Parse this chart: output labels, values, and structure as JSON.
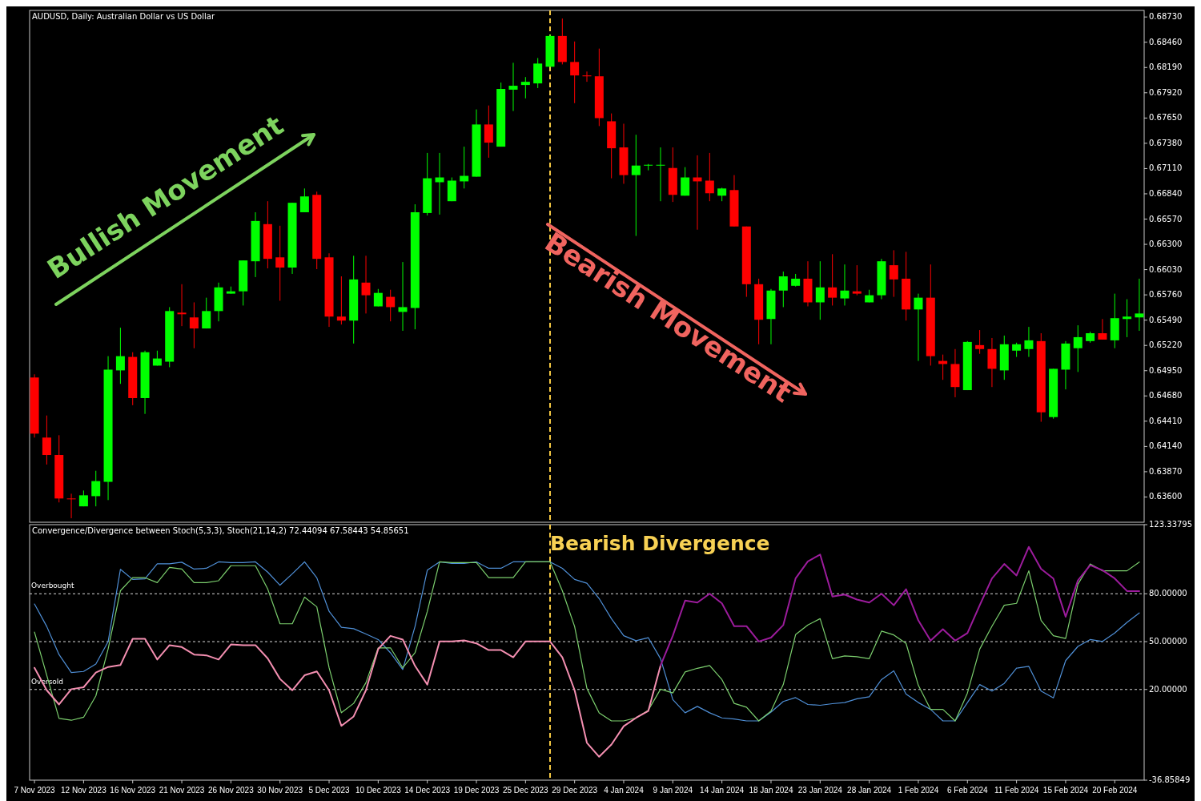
{
  "chart_data": [
    {
      "type": "candlestick",
      "title": "AUDUSD, Daily:  Australian Dollar vs US Dollar",
      "categories": [
        null,
        null,
        null,
        null,
        null,
        null,
        null,
        null,
        null,
        null,
        null,
        null,
        null,
        null,
        null,
        null,
        null,
        null,
        null,
        null,
        null,
        null,
        null,
        null,
        null,
        null,
        null,
        null,
        null,
        null,
        null,
        null,
        null,
        null,
        null,
        null,
        null,
        null,
        null,
        null,
        null,
        null,
        null,
        null,
        null,
        null,
        null,
        null,
        null,
        null,
        null,
        null,
        null,
        null,
        null,
        null,
        null,
        null,
        null,
        null,
        null,
        null,
        null,
        null,
        null,
        null,
        null,
        null,
        null,
        null,
        null,
        null,
        null,
        null,
        null,
        null,
        null,
        null,
        null,
        null,
        null,
        null,
        null,
        null,
        null,
        null,
        null,
        null,
        null,
        null,
        null
      ],
      "ohlc": [
        [
          0.64877,
          0.64911,
          0.64235,
          0.64277
        ],
        [
          0.64235,
          0.64471,
          0.63947,
          0.64049
        ],
        [
          0.64049,
          0.6426,
          0.63542,
          0.63584
        ],
        [
          0.63584,
          0.63635,
          0.63373,
          0.63576
        ],
        [
          0.635,
          0.63669,
          0.635,
          0.63618
        ],
        [
          0.63609,
          0.6388,
          0.635,
          0.6377
        ],
        [
          0.63762,
          0.65105,
          0.63567,
          0.64961
        ],
        [
          0.64953,
          0.65409,
          0.64809,
          0.65105
        ],
        [
          0.65097,
          0.65147,
          0.64581,
          0.64657
        ],
        [
          0.64657,
          0.65164,
          0.64488,
          0.65147
        ],
        [
          0.65004,
          0.65164,
          0.65004,
          0.6508
        ],
        [
          0.65046,
          0.65629,
          0.64987,
          0.65587
        ],
        [
          0.6557,
          0.65874,
          0.65426,
          0.65553
        ],
        [
          0.65519,
          0.6568,
          0.6519,
          0.65401
        ],
        [
          0.65401,
          0.6573,
          0.65401,
          0.65587
        ],
        [
          0.65587,
          0.65891,
          0.65477,
          0.6584
        ],
        [
          0.65773,
          0.65849,
          0.65773,
          0.65798
        ],
        [
          0.65798,
          0.66128,
          0.65646,
          0.66128
        ],
        [
          0.66119,
          0.66643,
          0.6595,
          0.6655
        ],
        [
          0.66516,
          0.66761,
          0.66043,
          0.66145
        ],
        [
          0.66161,
          0.66499,
          0.65697,
          0.66052
        ],
        [
          0.66052,
          0.66744,
          0.65984,
          0.66744
        ],
        [
          0.66643,
          0.66897,
          0.66643,
          0.66812
        ],
        [
          0.66829,
          0.66863,
          0.66035,
          0.66145
        ],
        [
          0.66161,
          0.66204,
          0.65418,
          0.65528
        ],
        [
          0.65528,
          0.65958,
          0.65443,
          0.65485
        ],
        [
          0.65485,
          0.66178,
          0.6524,
          0.65925
        ],
        [
          0.65891,
          0.66178,
          0.65561,
          0.65756
        ],
        [
          0.65637,
          0.65823,
          0.65637,
          0.65781
        ],
        [
          0.65739,
          0.65815,
          0.65477,
          0.65629
        ],
        [
          0.65578,
          0.66111,
          0.65376,
          0.65629
        ],
        [
          0.6562,
          0.66728,
          0.65392,
          0.66643
        ],
        [
          0.66635,
          0.67277,
          0.66609,
          0.67006
        ],
        [
          0.66964,
          0.67277,
          0.66618,
          0.67015
        ],
        [
          0.66761,
          0.67015,
          0.66761,
          0.66981
        ],
        [
          0.66973,
          0.67344,
          0.66897,
          0.67032
        ],
        [
          0.67023,
          0.67742,
          0.67023,
          0.67581
        ],
        [
          0.67581,
          0.67784,
          0.67226,
          0.67387
        ],
        [
          0.67344,
          0.68029,
          0.67344,
          0.67961
        ],
        [
          0.67953,
          0.6824,
          0.67725,
          0.67995
        ],
        [
          0.68003,
          0.68088,
          0.6786,
          0.68037
        ],
        [
          0.6802,
          0.68291,
          0.6797,
          0.68232
        ],
        [
          0.68198,
          0.68544,
          0.68198,
          0.68527
        ],
        [
          0.68527,
          0.68713,
          0.68223,
          0.68249
        ],
        [
          0.68249,
          0.68468,
          0.67809,
          0.68105
        ],
        [
          0.68105,
          0.68147,
          0.68037,
          0.68096
        ],
        [
          0.68096,
          0.68392,
          0.67564,
          0.67649
        ],
        [
          0.67615,
          0.67699,
          0.67006,
          0.67327
        ],
        [
          0.67336,
          0.67589,
          0.66947,
          0.6704
        ],
        [
          0.6704,
          0.67471,
          0.6639,
          0.67142
        ],
        [
          0.67142,
          0.67159,
          0.67091,
          0.6715
        ],
        [
          0.67142,
          0.67336,
          0.66761,
          0.6715
        ],
        [
          0.67116,
          0.67336,
          0.66753,
          0.66829
        ],
        [
          0.6682,
          0.67125,
          0.6682,
          0.67015
        ],
        [
          0.67015,
          0.67251,
          0.66457,
          0.66973
        ],
        [
          0.66981,
          0.67277,
          0.66761,
          0.66846
        ],
        [
          0.6682,
          0.66905,
          0.66761,
          0.66897
        ],
        [
          0.6688,
          0.6704,
          0.66491,
          0.66491
        ],
        [
          0.66491,
          0.66491,
          0.65739,
          0.65874
        ],
        [
          0.65874,
          0.65933,
          0.65232,
          0.65494
        ],
        [
          0.65502,
          0.65823,
          0.65232,
          0.65806
        ],
        [
          0.65806,
          0.66009,
          0.65629,
          0.65958
        ],
        [
          0.65857,
          0.65984,
          0.65849,
          0.65933
        ],
        [
          0.65933,
          0.66119,
          0.65637,
          0.6568
        ],
        [
          0.6568,
          0.66119,
          0.65494,
          0.6584
        ],
        [
          0.6584,
          0.66195,
          0.65646,
          0.6573
        ],
        [
          0.65722,
          0.66085,
          0.65646,
          0.65806
        ],
        [
          0.65798,
          0.66077,
          0.65756,
          0.65773
        ],
        [
          0.6568,
          0.65815,
          0.6568,
          0.65756
        ],
        [
          0.65756,
          0.66145,
          0.65714,
          0.66119
        ],
        [
          0.66077,
          0.66237,
          0.65739,
          0.65925
        ],
        [
          0.65933,
          0.6622,
          0.65485,
          0.65604
        ],
        [
          0.65604,
          0.65773,
          0.65054,
          0.6573
        ],
        [
          0.6573,
          0.66085,
          0.65004,
          0.65105
        ],
        [
          0.65054,
          0.65122,
          0.64852,
          0.65021
        ],
        [
          0.65021,
          0.65181,
          0.64666,
          0.64775
        ],
        [
          0.64742,
          0.65266,
          0.64742,
          0.65257
        ],
        [
          0.65223,
          0.65384,
          0.6513,
          0.65181
        ],
        [
          0.65181,
          0.65299,
          0.64775,
          0.6497
        ],
        [
          0.64953,
          0.65325,
          0.64852,
          0.65232
        ],
        [
          0.65164,
          0.65249,
          0.65097,
          0.65232
        ],
        [
          0.65181,
          0.65418,
          0.65097,
          0.65274
        ],
        [
          0.65266,
          0.6535,
          0.64404,
          0.64505
        ],
        [
          0.64454,
          0.6497,
          0.64437,
          0.6497
        ],
        [
          0.64961,
          0.65266,
          0.6475,
          0.6524
        ],
        [
          0.6519,
          0.65435,
          0.64936,
          0.65308
        ],
        [
          0.65266,
          0.65367,
          0.65249,
          0.6535
        ],
        [
          0.6535,
          0.65502,
          0.65282,
          0.65282
        ],
        [
          0.65274,
          0.65773,
          0.6519,
          0.65511
        ],
        [
          0.65502,
          0.65714,
          0.65308,
          0.65528
        ],
        [
          0.65519,
          0.65933,
          0.65376,
          0.65561
        ]
      ],
      "ylim": [
        0.6333,
        0.688
      ],
      "yticks": [
        {
          "value": 0.636,
          "label": "0.63600"
        },
        {
          "value": 0.6387,
          "label": "0.63870"
        },
        {
          "value": 0.6414,
          "label": "0.64140"
        },
        {
          "value": 0.6441,
          "label": "0.64410"
        },
        {
          "value": 0.6468,
          "label": "0.64680"
        },
        {
          "value": 0.6495,
          "label": "0.64950"
        },
        {
          "value": 0.6522,
          "label": "0.65220"
        },
        {
          "value": 0.6549,
          "label": "0.65490"
        },
        {
          "value": 0.6576,
          "label": "0.65760"
        },
        {
          "value": 0.6603,
          "label": "0.66030"
        },
        {
          "value": 0.663,
          "label": "0.66300"
        },
        {
          "value": 0.6657,
          "label": "0.66570"
        },
        {
          "value": 0.6684,
          "label": "0.66840"
        },
        {
          "value": 0.6711,
          "label": "0.67110"
        },
        {
          "value": 0.6738,
          "label": "0.67380"
        },
        {
          "value": 0.6765,
          "label": "0.67650"
        },
        {
          "value": 0.6792,
          "label": "0.67920"
        },
        {
          "value": 0.6819,
          "label": "0.68190"
        },
        {
          "value": 0.6846,
          "label": "0.68460"
        },
        {
          "value": 0.6873,
          "label": "0.68730"
        }
      ],
      "tick_labels": "y",
      "annotations": [
        "Bullish Movement",
        "Bearish Movement"
      ]
    },
    {
      "type": "line",
      "title": "Convergence/Divergence between Stoch(5,3,3), Stoch(21,14,2) 72.44094 67.58443 54.85651",
      "categories": [
        "7 Nov 2023",
        null,
        null,
        null,
        "12 Nov 2023",
        null,
        null,
        null,
        "16 Nov 2023",
        null,
        null,
        null,
        "21 Nov 2023",
        null,
        null,
        null,
        "26 Nov 2023",
        null,
        null,
        null,
        "30 Nov 2023",
        null,
        null,
        null,
        "5 Dec 2023",
        null,
        null,
        null,
        "10 Dec 2023",
        null,
        null,
        null,
        "14 Dec 2023",
        null,
        null,
        null,
        "19 Dec 2023",
        null,
        null,
        null,
        "25 Dec 2023",
        null,
        null,
        null,
        "29 Dec 2023",
        null,
        null,
        null,
        "4 Jan 2024",
        null,
        null,
        null,
        "9 Jan 2024",
        null,
        null,
        null,
        "14 Jan 2024",
        null,
        null,
        null,
        "18 Jan 2024",
        null,
        null,
        null,
        "23 Jan 2024",
        null,
        null,
        null,
        "28 Jan 2024",
        null,
        null,
        null,
        "1 Feb 2024",
        null,
        null,
        null,
        "6 Feb 2024",
        null,
        null,
        null,
        "11 Feb 2024",
        null,
        null,
        null,
        "15 Feb 2024",
        null,
        null,
        null,
        "20 Feb 2024",
        null,
        null
      ],
      "series": [
        {
          "color": "#4f8fd6",
          "values": [
            73.6,
            59.5,
            41.9,
            30.6,
            31.3,
            36,
            50,
            95.3,
            89,
            89.4,
            98.8,
            98.8,
            99.8,
            95.5,
            96,
            100,
            99.5,
            99.5,
            100,
            93.6,
            85.4,
            92.5,
            100,
            90,
            69,
            59,
            58.1,
            54.8,
            51.3,
            43,
            32.5,
            59.5,
            94.8,
            100,
            99,
            99,
            100,
            96,
            96,
            100,
            100,
            100,
            100,
            96,
            89,
            86.6,
            77,
            64.4,
            53.7,
            50.6,
            52.5,
            39.3,
            13.7,
            5.4,
            9.4,
            5.4,
            2.2,
            1.5,
            0.3,
            0.3,
            5.8,
            12.5,
            14.9,
            10.6,
            10.1,
            11.1,
            11.8,
            14.2,
            15.4,
            26.2,
            31.7,
            17.1,
            11.8,
            7.5,
            0.3,
            0.3,
            11.8,
            23.1,
            19,
            23.8,
            33.4,
            34.5,
            19,
            14.7,
            38.1,
            47,
            51.3,
            50.1,
            55.4,
            62.1,
            68
          ]
        },
        {
          "color": "#7ccf6e",
          "values": [
            56,
            28.9,
            1.9,
            0.7,
            2.6,
            16,
            45.4,
            81.9,
            90.1,
            90.1,
            87,
            96.5,
            95.5,
            87,
            87,
            88.2,
            97.6,
            97.6,
            97.6,
            83,
            61.2,
            61.2,
            77.9,
            71.8,
            33.6,
            5.4,
            11.3,
            24.2,
            46.1,
            46.1,
            33.6,
            43,
            68.9,
            100,
            99.5,
            99.5,
            99.5,
            90.1,
            90.1,
            90.1,
            100,
            100,
            100,
            81.9,
            59.5,
            20.7,
            5.3,
            0.3,
            0.3,
            2.2,
            7,
            20.2,
            17.8,
            31,
            33.3,
            35,
            26.2,
            11.3,
            8.9,
            0.3,
            6.5,
            23.1,
            54.4,
            60.4,
            64.4,
            39.3,
            41,
            40.5,
            39.3,
            56.6,
            54.2,
            48.9,
            22.6,
            7.5,
            7.5,
            0.3,
            17.8,
            45.3,
            59.7,
            72.8,
            74,
            94.4,
            63.3,
            53.7,
            52,
            86,
            98.7,
            94.4,
            94.4,
            94.4,
            99.9
          ]
        },
        {
          "color": "#f48fb1",
          "values": [
            33.6,
            19.5,
            10.6,
            20.2,
            21.4,
            30.6,
            34.1,
            35.3,
            51.8,
            51.8,
            38.8,
            47.8,
            46.6,
            41.9,
            41.4,
            38.8,
            48.2,
            47.8,
            47.8,
            39.5,
            26.6,
            19.5,
            28.9,
            31.3,
            19.5,
            -2.8,
            3.1,
            19.5,
            45.4,
            53.6,
            51.3,
            34.8,
            23.1,
            50.1,
            50.1,
            50.8,
            48.9,
            44.7,
            44.7,
            40.2,
            50.1,
            50.1,
            50.1,
            40.2,
            19.5,
            -13.4,
            -22.2,
            -14.5,
            -3,
            2.2,
            6.5,
            35,
            null,
            null,
            null,
            null,
            null,
            null,
            null,
            null,
            null,
            null,
            null,
            null,
            null,
            null,
            null,
            null,
            null,
            null,
            null,
            null,
            null,
            null,
            null,
            null,
            null,
            null,
            null,
            null,
            null,
            null,
            null,
            null,
            null,
            null,
            null,
            null,
            null,
            null,
            null
          ]
        },
        {
          "color": "#9c1c9c",
          "values": [
            null,
            null,
            null,
            null,
            null,
            null,
            null,
            null,
            null,
            null,
            null,
            null,
            null,
            null,
            null,
            null,
            null,
            null,
            null,
            null,
            null,
            null,
            null,
            null,
            null,
            null,
            null,
            null,
            null,
            null,
            null,
            null,
            null,
            null,
            null,
            null,
            null,
            null,
            null,
            null,
            null,
            null,
            null,
            null,
            null,
            null,
            null,
            null,
            null,
            null,
            null,
            35,
            53.7,
            75.7,
            74.5,
            80,
            74,
            59.7,
            59.7,
            50.1,
            52.5,
            60.4,
            89.6,
            100.3,
            104.6,
            78.3,
            79.5,
            76.4,
            74.5,
            80,
            72.8,
            82.9,
            63.3,
            50.6,
            57.8,
            50.6,
            55.4,
            72.8,
            89.6,
            98.7,
            91.5,
            109.4,
            95.6,
            89.6,
            65.6,
            88.4,
            97.9,
            94.8,
            89.6,
            81.7,
            81.7
          ]
        }
      ],
      "ylim": [
        -36.85849,
        123.33795
      ],
      "yticks": [
        123.33795,
        {
          "value": 80,
          "label": "80.00000"
        },
        {
          "value": 50,
          "label": "50.00000"
        },
        {
          "value": 20,
          "label": "20.00000"
        },
        -36.85849
      ],
      "ref_lines": [
        {
          "axis": "y",
          "value": 80,
          "label": "Overbought",
          "color": "#d9d9d9",
          "line_style": "dashed"
        },
        {
          "axis": "y",
          "value": 50,
          "label": null,
          "color": "#d9d9d9",
          "line_style": "dashed"
        },
        {
          "axis": "y",
          "value": 20,
          "label": "Oversold",
          "color": "#d9d9d9",
          "line_style": "dashed"
        }
      ],
      "annotations": [
        "Bearish Divergence"
      ]
    }
  ]
}
